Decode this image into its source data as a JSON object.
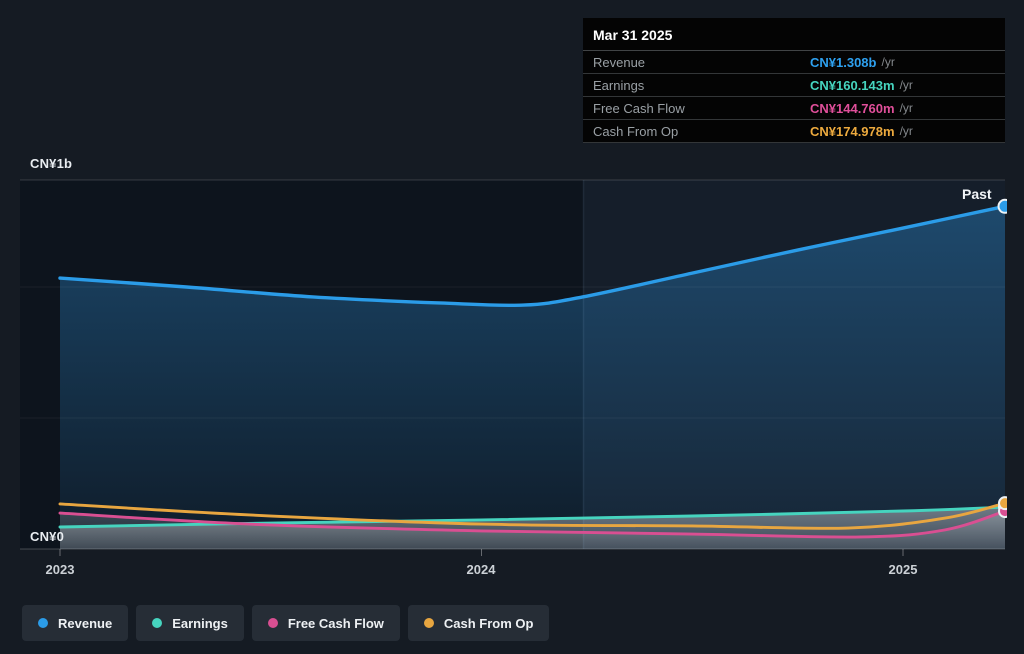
{
  "axis": {
    "y_max_label": "CN¥1b",
    "y_zero_label": "CN¥0",
    "x_ticks": [
      "2023",
      "2024",
      "2025"
    ]
  },
  "annotations": {
    "past_label": "Past"
  },
  "tooltip": {
    "date": "Mar 31 2025",
    "rows": [
      {
        "label": "Revenue",
        "value": "CN¥1.308b",
        "unit": "/yr",
        "color": "#2ea1f0"
      },
      {
        "label": "Earnings",
        "value": "CN¥160.143m",
        "unit": "/yr",
        "color": "#46d4bf"
      },
      {
        "label": "Free Cash Flow",
        "value": "CN¥144.760m",
        "unit": "/yr",
        "color": "#e04f9a"
      },
      {
        "label": "Cash From Op",
        "value": "CN¥174.978m",
        "unit": "/yr",
        "color": "#edaa3e"
      }
    ]
  },
  "legend": {
    "items": [
      {
        "label": "Revenue",
        "color": "#2b9ce8"
      },
      {
        "label": "Earnings",
        "color": "#46d4bf"
      },
      {
        "label": "Free Cash Flow",
        "color": "#d94f92"
      },
      {
        "label": "Cash From Op",
        "color": "#e8a640"
      }
    ]
  },
  "chart_data": {
    "type": "area",
    "title": "Past financial performance (hover: Mar 31 2025)",
    "x_unit": "decimal_year",
    "xlim": [
      2023.0,
      2025.242
    ],
    "x_ticks": [
      2023,
      2024,
      2025
    ],
    "x_tick_labels": [
      "2023",
      "2024",
      "2025"
    ],
    "y_unit": "CN¥ millions",
    "ylim": [
      0,
      1408
    ],
    "y_gridlines": [
      500,
      1000
    ],
    "y_gridline_labels": [
      "CN¥0 at 0",
      "CN¥1b at 1000"
    ],
    "highlight_from_x": 2024.242,
    "legend_position": "bottom-left",
    "series": [
      {
        "name": "Revenue",
        "color": "#2b9ce8",
        "end_value_label": "CN¥1.308b /yr",
        "x": [
          2023.0,
          2023.3,
          2023.6,
          2023.9,
          2024.1,
          2024.24,
          2024.5,
          2024.75,
          2025.0,
          2025.242
        ],
        "values": [
          1034,
          1000,
          962,
          939,
          931,
          962,
          1053,
          1141,
          1225,
          1308
        ]
      },
      {
        "name": "Earnings",
        "color": "#46d4bf",
        "end_value_label": "CN¥160.143m /yr",
        "x": [
          2023.0,
          2023.5,
          2024.0,
          2024.5,
          2025.0,
          2025.242
        ],
        "values": [
          84,
          99,
          111,
          126,
          145,
          160.143
        ]
      },
      {
        "name": "Free Cash Flow",
        "color": "#d94f92",
        "end_value_label": "CN¥144.760m /yr",
        "x": [
          2023.0,
          2023.45,
          2024.0,
          2024.5,
          2024.9,
          2025.1,
          2025.242
        ],
        "values": [
          137,
          95,
          69,
          57,
          46,
          73,
          144.76
        ]
      },
      {
        "name": "Cash From Op",
        "color": "#e8a640",
        "end_value_label": "CN¥174.978m /yr",
        "x": [
          2023.0,
          2023.45,
          2024.0,
          2024.5,
          2024.87,
          2025.1,
          2025.242
        ],
        "values": [
          172,
          130,
          95,
          88,
          80,
          118,
          174.978
        ]
      }
    ]
  }
}
